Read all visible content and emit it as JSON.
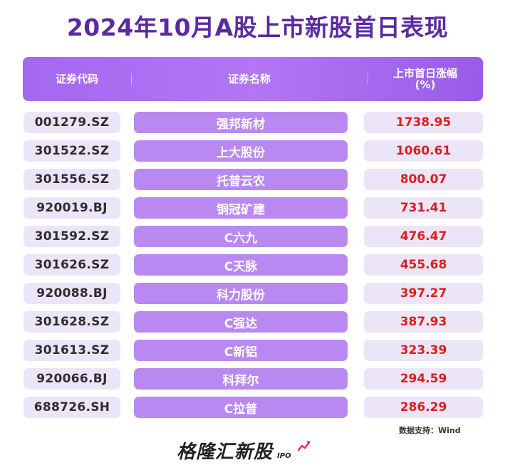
{
  "title": "2024年10月A股上市新股首日表现",
  "table": {
    "headers": {
      "code": "证券代码",
      "name": "证券名称",
      "pct_line1": "上市首日涨幅",
      "pct_line2": "(%)"
    },
    "rows": [
      {
        "code": "001279.SZ",
        "name": "强邦新材",
        "pct": "1738.95"
      },
      {
        "code": "301522.SZ",
        "name": "上大股份",
        "pct": "1060.61"
      },
      {
        "code": "301556.SZ",
        "name": "托普云农",
        "pct": "800.07"
      },
      {
        "code": "920019.BJ",
        "name": "铜冠矿建",
        "pct": "731.41"
      },
      {
        "code": "301592.SZ",
        "name": "C六九",
        "pct": "476.47"
      },
      {
        "code": "301626.SZ",
        "name": "C天脉",
        "pct": "455.68"
      },
      {
        "code": "920088.BJ",
        "name": "科力股份",
        "pct": "397.27"
      },
      {
        "code": "301628.SZ",
        "name": "C强达",
        "pct": "387.93"
      },
      {
        "code": "301613.SZ",
        "name": "C新铝",
        "pct": "323.39"
      },
      {
        "code": "920066.BJ",
        "name": "科拜尔",
        "pct": "294.59"
      },
      {
        "code": "688726.SH",
        "name": "C拉普",
        "pct": "286.29"
      }
    ]
  },
  "source": "数据支持：Wind",
  "logo": {
    "text": "格隆汇新股",
    "sub": "IPO"
  },
  "colors": {
    "title": "#5b2aa0",
    "header": "#a467f0",
    "name_cell": "#b989f1",
    "light_cell": "#ece5f8",
    "pct_text": "#dc1e1e"
  }
}
